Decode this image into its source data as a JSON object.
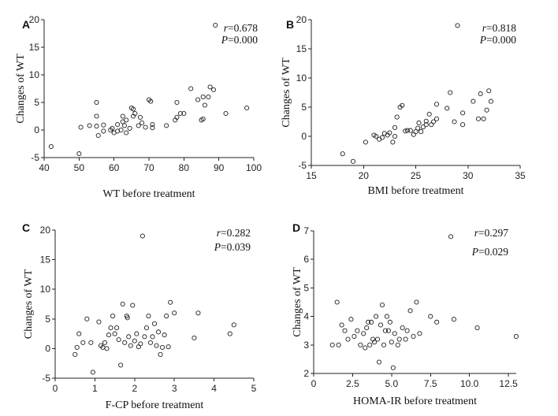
{
  "chart_data": [
    {
      "panel": "A",
      "type": "scatter",
      "xlabel": "WT before treatment",
      "ylabel": "Changes of WT",
      "xlim": [
        40,
        100
      ],
      "ylim": [
        -5,
        20
      ],
      "xticks": [
        "40",
        "50",
        "60",
        "70",
        "80",
        "90",
        "100"
      ],
      "yticks": [
        "-5",
        "0",
        "5",
        "10",
        "15",
        "20"
      ],
      "stats": {
        "r": "=0.678",
        "p": "=0.000"
      },
      "points": [
        [
          42,
          -3
        ],
        [
          50,
          -4.3
        ],
        [
          50.5,
          0.5
        ],
        [
          53,
          0.8
        ],
        [
          55,
          5
        ],
        [
          55,
          2.5
        ],
        [
          55,
          0.7
        ],
        [
          55.5,
          -1
        ],
        [
          57,
          0.9
        ],
        [
          57,
          -0.2
        ],
        [
          59,
          0
        ],
        [
          59.5,
          0.3
        ],
        [
          60,
          -0.5
        ],
        [
          61,
          -0.2
        ],
        [
          61,
          1
        ],
        [
          62,
          0
        ],
        [
          62.5,
          1.5
        ],
        [
          62.5,
          2.5
        ],
        [
          63,
          0.8
        ],
        [
          63.5,
          -0.5
        ],
        [
          63.5,
          1.8
        ],
        [
          64.5,
          0.3
        ],
        [
          65,
          4
        ],
        [
          65.5,
          3.8
        ],
        [
          65.5,
          2.5
        ],
        [
          66,
          3
        ],
        [
          67,
          0.8
        ],
        [
          67.5,
          2.3
        ],
        [
          68,
          1.3
        ],
        [
          69,
          0.5
        ],
        [
          70,
          5.5
        ],
        [
          70.5,
          5.2
        ],
        [
          71,
          1
        ],
        [
          71,
          0.4
        ],
        [
          75,
          0.8
        ],
        [
          77.5,
          1.8
        ],
        [
          78,
          2.3
        ],
        [
          78,
          5
        ],
        [
          79,
          3
        ],
        [
          80,
          3
        ],
        [
          82,
          7.5
        ],
        [
          84,
          5.5
        ],
        [
          85,
          1.8
        ],
        [
          85.5,
          2
        ],
        [
          85.5,
          6
        ],
        [
          86,
          4.5
        ],
        [
          87,
          6
        ],
        [
          87.5,
          7.8
        ],
        [
          88.5,
          7.3
        ],
        [
          89,
          19
        ],
        [
          92,
          3
        ],
        [
          98,
          4
        ]
      ]
    },
    {
      "panel": "B",
      "type": "scatter",
      "xlabel": "BMI before treatment",
      "ylabel": "Changes of WT",
      "xlim": [
        15,
        35
      ],
      "ylim": [
        -5,
        20
      ],
      "xticks": [
        "15",
        "20",
        "25",
        "30",
        "35"
      ],
      "yticks": [
        "-5",
        "0",
        "5",
        "10",
        "15",
        "20"
      ],
      "stats": {
        "r": "=0.818",
        "p": "=0.000"
      },
      "points": [
        [
          18,
          -3
        ],
        [
          19,
          -4.3
        ],
        [
          20.2,
          -1
        ],
        [
          21,
          0.2
        ],
        [
          21.2,
          0
        ],
        [
          21.5,
          -0.5
        ],
        [
          21.8,
          -0.2
        ],
        [
          22,
          0.5
        ],
        [
          22.3,
          0.2
        ],
        [
          22.5,
          0.6
        ],
        [
          22.8,
          -1
        ],
        [
          23,
          0
        ],
        [
          23,
          1.5
        ],
        [
          23.2,
          3.3
        ],
        [
          23.5,
          5
        ],
        [
          23.7,
          5.3
        ],
        [
          24,
          0.9
        ],
        [
          24.2,
          1
        ],
        [
          24.5,
          1
        ],
        [
          24.8,
          0.3
        ],
        [
          25,
          0.8
        ],
        [
          25.2,
          1.4
        ],
        [
          25.3,
          2.3
        ],
        [
          25.5,
          0.8
        ],
        [
          25.7,
          1.6
        ],
        [
          26,
          2
        ],
        [
          26,
          2.6
        ],
        [
          26.3,
          3.8
        ],
        [
          26.5,
          2
        ],
        [
          26.7,
          2.5
        ],
        [
          27,
          5.5
        ],
        [
          27,
          3
        ],
        [
          28,
          4.8
        ],
        [
          28.3,
          7.5
        ],
        [
          28.7,
          2.5
        ],
        [
          29,
          19
        ],
        [
          29.5,
          4
        ],
        [
          29.5,
          2
        ],
        [
          30.5,
          6
        ],
        [
          31,
          3
        ],
        [
          31.2,
          7.3
        ],
        [
          31.5,
          3
        ],
        [
          31.8,
          4.5
        ],
        [
          32,
          7.8
        ],
        [
          32.2,
          6
        ]
      ]
    },
    {
      "panel": "C",
      "type": "scatter",
      "xlabel": "F-CP before treatment",
      "ylabel": "Changes of WT",
      "xlim": [
        0,
        5
      ],
      "ylim": [
        -5,
        20
      ],
      "xticks": [
        "0",
        "1",
        "2",
        "3",
        "4",
        "5"
      ],
      "yticks": [
        "-5",
        "0",
        "5",
        "10",
        "15",
        "20"
      ],
      "stats": {
        "r": "=0.282",
        "p": "=0.039"
      },
      "points": [
        [
          0.5,
          -1
        ],
        [
          0.55,
          0.2
        ],
        [
          0.6,
          2.5
        ],
        [
          0.7,
          1
        ],
        [
          0.8,
          5
        ],
        [
          0.9,
          1
        ],
        [
          0.95,
          -4
        ],
        [
          1.1,
          4.5
        ],
        [
          1.15,
          0.5
        ],
        [
          1.2,
          0.2
        ],
        [
          1.25,
          1
        ],
        [
          1.3,
          0
        ],
        [
          1.35,
          2.3
        ],
        [
          1.4,
          3.5
        ],
        [
          1.45,
          5.5
        ],
        [
          1.5,
          2.5
        ],
        [
          1.55,
          3.5
        ],
        [
          1.6,
          1.5
        ],
        [
          1.65,
          -2.8
        ],
        [
          1.7,
          7.5
        ],
        [
          1.75,
          1
        ],
        [
          1.8,
          5.5
        ],
        [
          1.82,
          5.2
        ],
        [
          1.85,
          2
        ],
        [
          1.9,
          0.5
        ],
        [
          1.95,
          7.3
        ],
        [
          2.0,
          1.3
        ],
        [
          2.05,
          2.5
        ],
        [
          2.1,
          0.3
        ],
        [
          2.15,
          0.8
        ],
        [
          2.2,
          19
        ],
        [
          2.25,
          2
        ],
        [
          2.3,
          3.5
        ],
        [
          2.35,
          5.5
        ],
        [
          2.4,
          1
        ],
        [
          2.45,
          2
        ],
        [
          2.5,
          4.2
        ],
        [
          2.55,
          0.5
        ],
        [
          2.6,
          2.8
        ],
        [
          2.65,
          -1
        ],
        [
          2.7,
          0.2
        ],
        [
          2.75,
          2.3
        ],
        [
          2.8,
          5.5
        ],
        [
          2.85,
          0.3
        ],
        [
          2.9,
          7.8
        ],
        [
          3.0,
          6
        ],
        [
          3.5,
          1.8
        ],
        [
          3.6,
          6
        ],
        [
          4.4,
          2.5
        ],
        [
          4.5,
          4
        ]
      ]
    },
    {
      "panel": "D",
      "type": "scatter",
      "xlabel": "HOMA-IR before treatment",
      "ylabel": "Changes of WT",
      "xlim": [
        0,
        13
      ],
      "ylim": [
        2,
        7
      ],
      "xticks": [
        "0",
        "2.5",
        "5.0",
        "7.5",
        "10.0",
        "12.5"
      ],
      "yticks": [
        "2",
        "3",
        "4",
        "5",
        "6",
        "7"
      ],
      "stats": {
        "r": "=0.297",
        "p": "=0.029"
      },
      "points": [
        [
          1.2,
          3
        ],
        [
          1.5,
          4.5
        ],
        [
          1.6,
          3
        ],
        [
          1.8,
          3.7
        ],
        [
          2.0,
          3.5
        ],
        [
          2.2,
          3.2
        ],
        [
          2.4,
          3.9
        ],
        [
          2.6,
          3.3
        ],
        [
          2.8,
          3.5
        ],
        [
          3.0,
          3
        ],
        [
          3.2,
          3.4
        ],
        [
          3.3,
          2.9
        ],
        [
          3.4,
          3.6
        ],
        [
          3.5,
          3.8
        ],
        [
          3.6,
          3
        ],
        [
          3.7,
          3.8
        ],
        [
          3.8,
          3.2
        ],
        [
          3.9,
          3.1
        ],
        [
          4.0,
          4
        ],
        [
          4.1,
          3.2
        ],
        [
          4.2,
          2.4
        ],
        [
          4.3,
          3.7
        ],
        [
          4.4,
          4.4
        ],
        [
          4.5,
          3
        ],
        [
          4.6,
          3.5
        ],
        [
          4.7,
          4
        ],
        [
          4.8,
          3.5
        ],
        [
          4.9,
          3.8
        ],
        [
          5.0,
          3.1
        ],
        [
          5.1,
          2.2
        ],
        [
          5.2,
          3.4
        ],
        [
          5.4,
          3
        ],
        [
          5.5,
          3.2
        ],
        [
          5.7,
          3.6
        ],
        [
          5.9,
          3.2
        ],
        [
          6.0,
          3.5
        ],
        [
          6.2,
          4.2
        ],
        [
          6.4,
          3.3
        ],
        [
          6.6,
          4.5
        ],
        [
          6.8,
          3.4
        ],
        [
          7.5,
          4
        ],
        [
          7.9,
          3.8
        ],
        [
          8.8,
          6.8
        ],
        [
          9.0,
          3.9
        ],
        [
          10.5,
          3.6
        ],
        [
          13.0,
          3.3
        ]
      ]
    }
  ]
}
